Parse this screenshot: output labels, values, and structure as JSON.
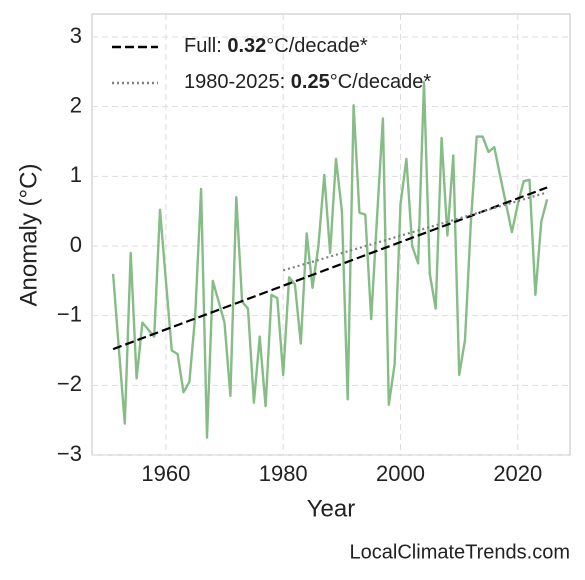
{
  "chart_data": {
    "type": "line",
    "xlabel": "Year",
    "ylabel": "Anomaly (°C)",
    "attribution": "LocalClimateTrends.com",
    "x": [
      1951,
      1952,
      1953,
      1954,
      1955,
      1956,
      1957,
      1958,
      1959,
      1960,
      1961,
      1962,
      1963,
      1964,
      1965,
      1966,
      1967,
      1968,
      1969,
      1970,
      1971,
      1972,
      1973,
      1974,
      1975,
      1976,
      1977,
      1978,
      1979,
      1980,
      1981,
      1982,
      1983,
      1984,
      1985,
      1986,
      1987,
      1988,
      1989,
      1990,
      1991,
      1992,
      1993,
      1994,
      1995,
      1996,
      1997,
      1998,
      1999,
      2000,
      2001,
      2002,
      2003,
      2004,
      2005,
      2006,
      2007,
      2008,
      2009,
      2010,
      2011,
      2012,
      2013,
      2014,
      2015,
      2016,
      2017,
      2018,
      2019,
      2020,
      2021,
      2022,
      2023,
      2024,
      2025
    ],
    "series": [
      {
        "color": "#86bc86",
        "values": [
          -0.4,
          -1.5,
          -2.55,
          -0.1,
          -1.9,
          -1.1,
          -1.2,
          -1.3,
          0.52,
          -0.5,
          -1.5,
          -1.55,
          -2.1,
          -1.95,
          -1.0,
          0.82,
          -2.75,
          -0.5,
          -0.8,
          -1.1,
          -2.15,
          0.7,
          -0.8,
          -0.9,
          -2.25,
          -1.3,
          -2.3,
          -0.7,
          -0.75,
          -1.85,
          -0.45,
          -0.55,
          -1.4,
          0.18,
          -0.6,
          0.0,
          1.02,
          -0.1,
          1.25,
          0.5,
          -2.2,
          2.02,
          0.48,
          0.45,
          -1.05,
          0.4,
          1.83,
          -2.28,
          -1.7,
          0.6,
          1.25,
          0.0,
          -0.25,
          2.35,
          -0.4,
          -0.9,
          1.55,
          0.15,
          1.3,
          -1.85,
          -1.35,
          0.35,
          1.57,
          1.57,
          1.35,
          1.42,
          1.0,
          0.6,
          0.2,
          0.6,
          0.93,
          0.95,
          -0.7,
          0.35,
          0.67
        ]
      },
      {
        "name": "Full: 0.32°C/decade*",
        "color": "#000000",
        "dash": "dashed",
        "x": [
          1951,
          2025
        ],
        "values": [
          -1.48,
          0.84
        ]
      },
      {
        "name": "1980-2025: 0.25°C/decade*",
        "color": "#808080",
        "dash": "dotted",
        "x": [
          1980,
          2025
        ],
        "values": [
          -0.35,
          0.77
        ]
      }
    ],
    "xlim": [
      1947.4,
      2028.9
    ],
    "ylim": [
      -3,
      3.33
    ],
    "xticks": [
      1960,
      1980,
      2000,
      2020
    ],
    "yticks": [
      {
        "value": -3,
        "label": "−3"
      },
      {
        "value": -2,
        "label": "−2"
      },
      {
        "value": -1,
        "label": "−1"
      },
      0,
      1,
      2,
      3
    ],
    "grid": true,
    "legend": "upper left"
  }
}
